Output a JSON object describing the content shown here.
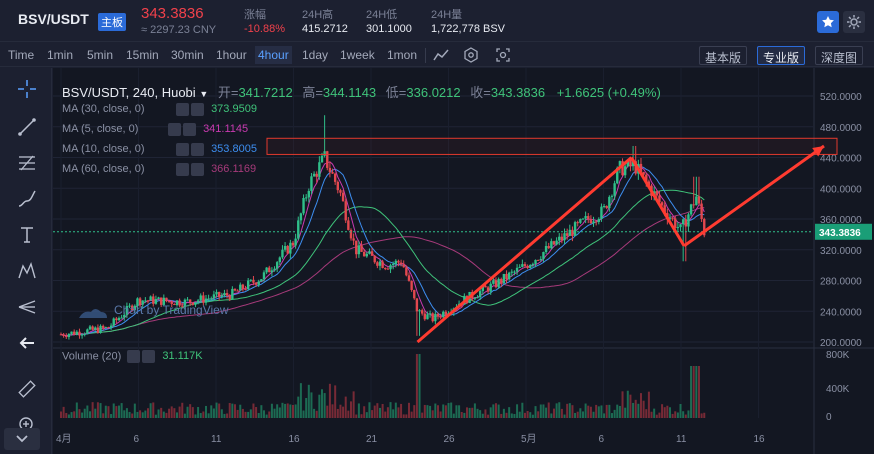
{
  "header": {
    "pair": "BSV/USDT",
    "badge": "主板",
    "price": "343.3836",
    "price_cny": "≈ 2297.23 CNY",
    "stats": [
      {
        "label": "涨幅",
        "value": "-10.88%",
        "color": "#f0414b"
      },
      {
        "label": "24H高",
        "value": "415.2712",
        "color": "#e8ebf2"
      },
      {
        "label": "24H低",
        "value": "301.1000",
        "color": "#e8ebf2"
      },
      {
        "label": "24H量",
        "value": "1,722,778 BSV",
        "color": "#e8ebf2"
      }
    ],
    "icons": [
      "star-icon",
      "settings-icon"
    ]
  },
  "toolbar": {
    "timeframes": [
      "Time",
      "1min",
      "5min",
      "15min",
      "30min",
      "1hour",
      "4hour",
      "1day",
      "1week",
      "1mon"
    ],
    "active_timeframe": "4hour",
    "views": [
      "基本版",
      "专业版",
      "深度图"
    ],
    "active_view": "专业版"
  },
  "sidebar": {
    "tools": [
      "crosshair-icon",
      "trendline-icon",
      "fib-icon",
      "brush-icon",
      "text-icon",
      "pattern-icon",
      "fork-icon",
      "back-arrow-icon",
      "ruler-icon",
      "zoom-in-icon",
      "collapse-icon"
    ]
  },
  "legend": {
    "symbol": "BSV/USDT, 240, Huobi",
    "ohlc": {
      "open_label": "开=",
      "open": "341.7212",
      "high_label": "高=",
      "high": "344.1143",
      "low_label": "低=",
      "low": "336.0212",
      "close_label": "收=",
      "close": "343.3836",
      "change": "+1.6625 (+0.49%)"
    },
    "mas": [
      {
        "label": "MA (30, close, 0)",
        "value": "373.9509",
        "color": "#3fc37a"
      },
      {
        "label": "MA (5, close, 0)",
        "value": "341.1145",
        "color": "#c93ab0"
      },
      {
        "label": "MA (10, close, 0)",
        "value": "353.8005",
        "color": "#3d8ef0"
      },
      {
        "label": "MA (60, close, 0)",
        "value": "366.1169",
        "color": "#a63a7a"
      }
    ],
    "volume": {
      "label": "Volume (20)",
      "value": "31.117K"
    }
  },
  "watermark": "Chart by TradingView",
  "price_axis": [
    "520.0000",
    "480.0000",
    "440.0000",
    "400.0000",
    "360.0000",
    "320.0000",
    "280.0000",
    "240.0000",
    "200.0000"
  ],
  "last_price_label": "343.3836",
  "volume_axis": [
    "800K",
    "400K",
    "0"
  ],
  "time_axis": [
    "4月",
    "6",
    "11",
    "16",
    "21",
    "26",
    "5月",
    "6",
    "11",
    "16"
  ],
  "chart_data": {
    "type": "candlestick",
    "ylim": [
      200,
      520
    ],
    "volume_ylim": [
      0,
      800000
    ],
    "x_labels": [
      "4月",
      "6",
      "11",
      "16",
      "21",
      "26",
      "5月",
      "6",
      "11",
      "16"
    ],
    "close_path": [
      {
        "t": 0,
        "v": 210
      },
      {
        "t": 3,
        "v": 218
      },
      {
        "t": 5,
        "v": 255
      },
      {
        "t": 8,
        "v": 252
      },
      {
        "t": 11,
        "v": 262
      },
      {
        "t": 13,
        "v": 285
      },
      {
        "t": 15,
        "v": 330
      },
      {
        "t": 16,
        "v": 405
      },
      {
        "t": 17,
        "v": 440
      },
      {
        "t": 18,
        "v": 395
      },
      {
        "t": 19,
        "v": 320
      },
      {
        "t": 21,
        "v": 300
      },
      {
        "t": 22,
        "v": 305
      },
      {
        "t": 23,
        "v": 240
      },
      {
        "t": 24,
        "v": 230
      },
      {
        "t": 26,
        "v": 255
      },
      {
        "t": 28,
        "v": 275
      },
      {
        "t": 30,
        "v": 300
      },
      {
        "t": 32,
        "v": 330
      },
      {
        "t": 34,
        "v": 360
      },
      {
        "t": 35,
        "v": 370
      },
      {
        "t": 36,
        "v": 425
      },
      {
        "t": 37,
        "v": 430
      },
      {
        "t": 38,
        "v": 400
      },
      {
        "t": 39,
        "v": 370
      },
      {
        "t": 40,
        "v": 345
      },
      {
        "t": 41,
        "v": 390
      },
      {
        "t": 41.5,
        "v": 343.38
      }
    ],
    "annotations": [
      {
        "type": "rectangle",
        "y_range": [
          444,
          465
        ],
        "color": "#e23a2e"
      },
      {
        "type": "trend-up",
        "from_value": 200,
        "to_value": 440,
        "color": "#ff3b30"
      },
      {
        "type": "trend-down",
        "from_value": 440,
        "to_value": 325,
        "color": "#ff3b30"
      },
      {
        "type": "arrow-up",
        "from_value": 325,
        "to_value": 455,
        "color": "#ff3b30"
      }
    ]
  }
}
